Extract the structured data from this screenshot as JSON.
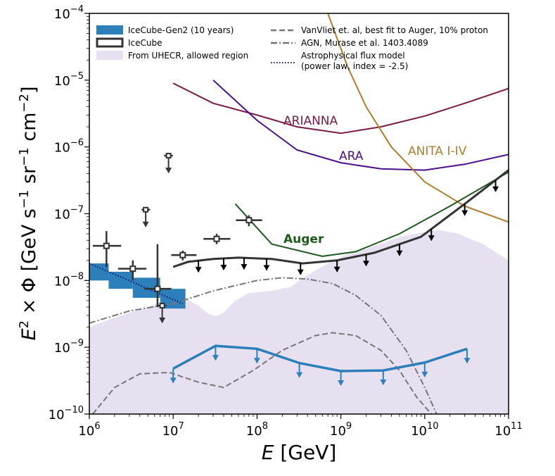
{
  "chart_data": {
    "type": "line",
    "xlabel": "E [GeV]",
    "ylabel": "E² × Φ [GeV s⁻¹ sr⁻¹ cm⁻²]",
    "xscale": "log",
    "yscale": "log",
    "xlim": [
      1000000,
      100000000000
    ],
    "ylim": [
      1e-10,
      0.0001
    ],
    "x_ticks": [
      {
        "mant": "10",
        "exp": "6"
      },
      {
        "mant": "10",
        "exp": "7"
      },
      {
        "mant": "10",
        "exp": "8"
      },
      {
        "mant": "10",
        "exp": "9"
      },
      {
        "mant": "10",
        "exp": "10"
      },
      {
        "mant": "10",
        "exp": "11"
      }
    ],
    "y_ticks": [
      {
        "mant": "10",
        "exp": "−10"
      },
      {
        "mant": "10",
        "exp": "−9"
      },
      {
        "mant": "10",
        "exp": "−8"
      },
      {
        "mant": "10",
        "exp": "−7"
      },
      {
        "mant": "10",
        "exp": "−6"
      },
      {
        "mant": "10",
        "exp": "−5"
      },
      {
        "mant": "10",
        "exp": "−4"
      }
    ],
    "legend": {
      "placement": "top",
      "entries": [
        "IceCube-Gen2 (10 years)",
        "IceCube",
        "From UHECR, allowed region",
        "VanVliet et. al, best fit to Auger, 10% proton",
        "AGN, Murase et al. 1403.4089",
        "Astrophysical flux model",
        "(power law, index = -2.5)"
      ]
    },
    "curve_labels": {
      "arianna": "ARIANNA",
      "ara": "ARA",
      "anita": "ANITA I-IV",
      "auger": "Auger"
    },
    "colors": {
      "gen2": "#2c7fb8",
      "icecube": "#333333",
      "uhecr": "#e6e0f0",
      "arianna": "#7a1a45",
      "ara": "#4b0f8c",
      "anita": "#b07d2e",
      "auger": "#1e5a1e",
      "vanvliet": "#777777",
      "agn": "#777777",
      "astro": "#101080"
    },
    "series": [
      {
        "name": "UHECR allowed region",
        "x": [
          1000000,
          1600000,
          3000000,
          5000000,
          7000000,
          9000000,
          11000000,
          15000000,
          20000000,
          26000000,
          32000000,
          40000000,
          55000000,
          80000000,
          150000000,
          250000000,
          400000000,
          700000000,
          1200000000,
          2000000000,
          3500000000,
          5000000000,
          9000000000,
          15000000000,
          25000000000,
          50000000000,
          100000000000
        ],
        "upper": [
          2e-09,
          2.5e-09,
          3.3e-09,
          4e-09,
          4.8e-09,
          5.6e-09,
          5.8e-09,
          5.1e-09,
          4.2e-09,
          3.2e-09,
          2.9e-09,
          3.3e-09,
          5e-09,
          6.5e-09,
          7e-09,
          8e-09,
          1.2e-08,
          1.8e-08,
          2.5e-08,
          3e-08,
          3.8e-08,
          4.5e-08,
          5.2e-08,
          5.7e-08,
          5e-08,
          3.5e-08,
          2e-08
        ],
        "floor": 1e-10
      },
      {
        "name": "ARIANNA",
        "x": [
          10000000,
          30000000,
          100000000,
          300000000,
          1000000000,
          3000000000,
          10000000000,
          30000000000,
          100000000000
        ],
        "y": [
          9e-06,
          4.5e-06,
          3e-06,
          2e-06,
          1.6e-06,
          2e-06,
          2.9e-06,
          4.5e-06,
          7.5e-06
        ]
      },
      {
        "name": "ARA",
        "x": [
          30000000,
          100000000,
          300000000,
          1000000000,
          3000000000,
          10000000000,
          30000000000,
          100000000000
        ],
        "y": [
          1e-05,
          2.5e-06,
          9e-07,
          5.8e-07,
          4.7e-07,
          4.5e-07,
          5.5e-07,
          7.7e-07
        ]
      },
      {
        "name": "ANITA I-IV",
        "x": [
          700000000,
          1200000000,
          2000000000,
          4000000000,
          10000000000,
          30000000000,
          100000000000
        ],
        "y": [
          0.0001,
          1.6e-05,
          4e-06,
          1e-06,
          3e-07,
          1.3e-07,
          7.5e-08
        ]
      },
      {
        "name": "Auger",
        "x": [
          55000000,
          150000000,
          600000000,
          1500000000,
          5000000000,
          20000000000,
          100000000000
        ],
        "y": [
          1.4e-07,
          3.5e-08,
          2.3e-08,
          2.7e-08,
          5e-08,
          1.3e-07,
          4.2e-07
        ]
      },
      {
        "name": "IceCube limit",
        "x": [
          10000000,
          15000000,
          30000000,
          60000000,
          150000000,
          350000000,
          900000000,
          2500000000,
          9000000000,
          30000000000,
          100000000000
        ],
        "y": [
          1.6e-08,
          1.9e-08,
          2.1e-08,
          2.2e-08,
          2.1e-08,
          1.8e-08,
          2e-08,
          2.6e-08,
          4.5e-08,
          1.4e-07,
          4.5e-07
        ]
      },
      {
        "name": "IceCube-Gen2 (10 years)",
        "x": [
          10000000,
          32000000,
          100000000,
          320000000,
          1000000000,
          3200000000,
          10000000000,
          32000000000
        ],
        "y": [
          4.8e-10,
          1.05e-09,
          9.5e-10,
          5.8e-10,
          4.4e-10,
          4.5e-10,
          5.9e-10,
          9.5e-10
        ]
      },
      {
        "name": "AGN, Murase et al. 1403.4089",
        "x": [
          1000000,
          3000000,
          10000000,
          30000000,
          100000000,
          200000000,
          400000000,
          800000000,
          1500000000,
          3000000000,
          6000000000,
          10000000000,
          15000000000
        ],
        "y": [
          2.3e-09,
          3.5e-09,
          4.5e-09,
          7e-09,
          1e-08,
          1.1e-08,
          1.05e-08,
          9e-09,
          6e-09,
          3e-09,
          9e-10,
          2.5e-10,
          8e-11
        ]
      },
      {
        "name": "VanVliet et. al",
        "x": [
          1100000,
          2000000,
          4000000,
          9000000,
          20000000,
          40000000,
          90000000,
          200000000,
          500000000,
          800000000,
          1500000000,
          3000000000,
          5000000000,
          8000000000,
          12000000000,
          14000000000
        ],
        "y": [
          1e-10,
          2.5e-10,
          4e-10,
          4.2e-10,
          3e-10,
          2.5e-10,
          4.5e-10,
          9e-10,
          1.5e-09,
          1.65e-09,
          1.5e-09,
          9e-10,
          4.5e-10,
          1.8e-10,
          1e-10,
          8e-11
        ]
      },
      {
        "name": "Astrophysical flux model",
        "x": [
          1000000,
          13000000
        ],
        "y": [
          1.8e-08,
          4.5e-09
        ]
      }
    ],
    "gen2_boxes": [
      {
        "x1": 1000000,
        "x2": 1700000,
        "y1": 1e-08,
        "y2": 1.8e-08
      },
      {
        "x1": 1700000,
        "x2": 3300000,
        "y1": 7.5e-09,
        "y2": 1.35e-08
      },
      {
        "x1": 3300000,
        "x2": 7000000,
        "y1": 5.5e-09,
        "y2": 1.1e-08
      },
      {
        "x1": 7000000,
        "x2": 14000000,
        "y1": 3.8e-09,
        "y2": 7.5e-09
      }
    ],
    "icecube_points": [
      {
        "x": 1600000,
        "y": 3.3e-08,
        "xerr": [
          1100000,
          2400000
        ],
        "yerr": [
          1.6e-08,
          5.5e-08
        ]
      },
      {
        "x": 3300000,
        "y": 1.5e-08,
        "xerr": [
          2200000,
          4800000
        ],
        "yerr": [
          1e-08,
          2e-08
        ]
      },
      {
        "x": 6500000,
        "y": 7.5e-09,
        "xerr": [
          4500000,
          9500000
        ],
        "yerr": [
          4e-09,
          3.5e-08
        ]
      },
      {
        "x": 13000000,
        "y": 2.4e-08,
        "xerr": [
          9500000,
          19000000
        ],
        "yerr": [
          2e-08,
          2.8e-08
        ]
      },
      {
        "x": 33000000,
        "y": 4.2e-08,
        "xerr": [
          23000000,
          48000000
        ],
        "yerr": [
          3.5e-08,
          5e-08
        ]
      },
      {
        "x": 80000000,
        "y": 8e-08,
        "xerr": [
          56000000,
          115000000
        ],
        "yerr": [
          6.5e-08,
          9.5e-08
        ]
      }
    ],
    "icecube_upper_limits": [
      {
        "x": 8800000,
        "y": 7.4e-07,
        "xerr": [
          7800000,
          9900000
        ]
      },
      {
        "x": 4700000,
        "y": 1.15e-07,
        "xerr": [
          4200000,
          5300000
        ]
      },
      {
        "x": 7400000,
        "y": 4.2e-09,
        "xerr": [
          6500000,
          8300000
        ]
      }
    ],
    "icecube_arrow_x": [
      20000000,
      40000000,
      70000000,
      130000000,
      330000000,
      900000000,
      2000000000,
      5000000000,
      12000000000,
      30000000000,
      70000000000
    ],
    "gen2_arrow_x": [
      10000000,
      32000000,
      100000000,
      320000000,
      1000000000,
      3200000000,
      10000000000,
      32000000000
    ]
  }
}
